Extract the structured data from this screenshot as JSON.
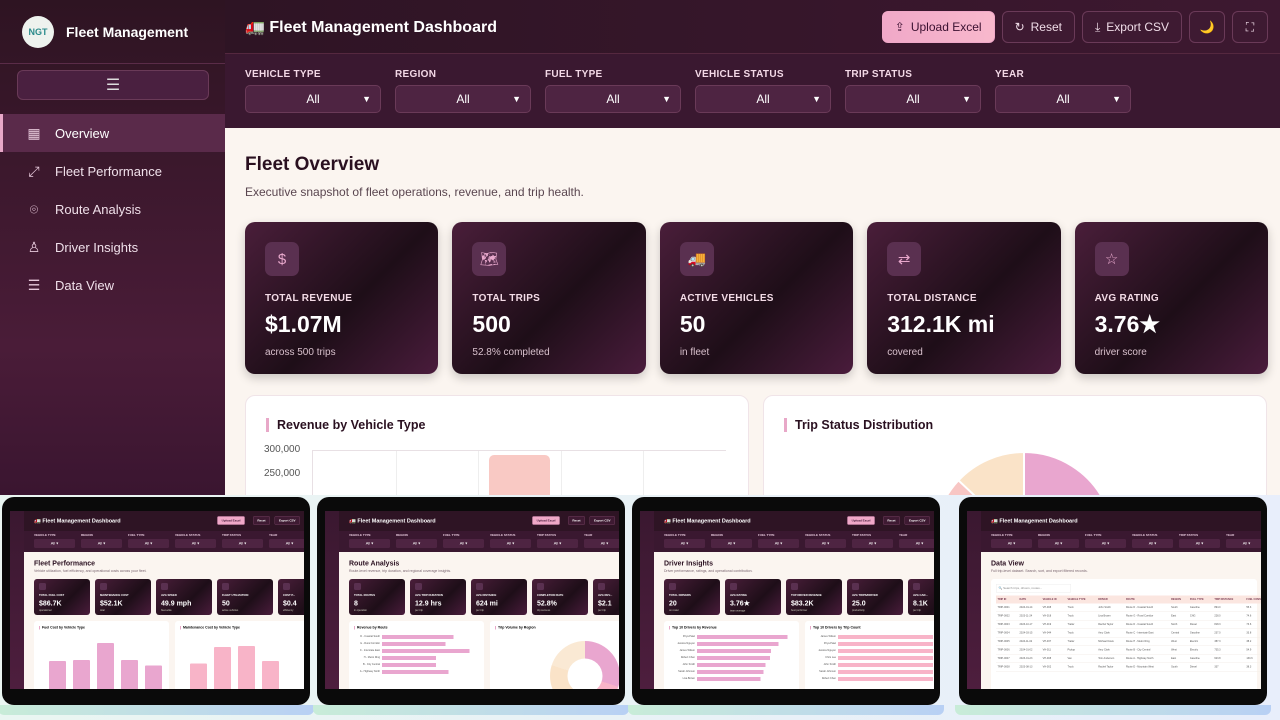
{
  "sidebar": {
    "logo_text": "NGT",
    "brand": "Fleet Management",
    "menu_icon": "☰",
    "items": [
      {
        "label": "Overview",
        "icon": "grid-icon",
        "active": true
      },
      {
        "label": "Fleet Performance",
        "icon": "expand-icon"
      },
      {
        "label": "Route Analysis",
        "icon": "map-pin-icon"
      },
      {
        "label": "Driver Insights",
        "icon": "user-icon"
      },
      {
        "label": "Data View",
        "icon": "list-icon"
      }
    ]
  },
  "header": {
    "title": "🚛 Fleet Management Dashboard",
    "upload": "Upload Excel",
    "reset": "Reset",
    "export": "Export CSV",
    "theme_icon": "🌙",
    "fullscreen_icon": "⛶"
  },
  "filters": [
    {
      "label": "VEHICLE TYPE",
      "value": "All"
    },
    {
      "label": "REGION",
      "value": "All"
    },
    {
      "label": "FUEL TYPE",
      "value": "All"
    },
    {
      "label": "VEHICLE STATUS",
      "value": "All"
    },
    {
      "label": "TRIP STATUS",
      "value": "All"
    },
    {
      "label": "YEAR",
      "value": "All"
    }
  ],
  "overview": {
    "title": "Fleet Overview",
    "subtitle": "Executive snapshot of fleet operations, revenue, and trip health.",
    "kpis": [
      {
        "icon": "$",
        "label": "TOTAL REVENUE",
        "value": "$1.07M",
        "sub": "across 500 trips"
      },
      {
        "icon": "🗺",
        "label": "TOTAL TRIPS",
        "value": "500",
        "sub": "52.8% completed"
      },
      {
        "icon": "🚚",
        "label": "ACTIVE VEHICLES",
        "value": "50",
        "sub": "in fleet"
      },
      {
        "icon": "⇄",
        "label": "TOTAL DISTANCE",
        "value": "312.1K mi",
        "sub": "covered"
      },
      {
        "icon": "☆",
        "label": "AVG RATING",
        "value": "3.76★",
        "sub": "driver score"
      }
    ],
    "revenue_chart": {
      "title": "Revenue by Vehicle Type",
      "y_ticks": [
        "300,000",
        "250,000"
      ],
      "bar_color": "#f9c9c4"
    },
    "status_chart": {
      "title": "Trip Status Distribution",
      "colors": [
        "#e9a6cf",
        "#fae3c8",
        "#f8c6c4"
      ]
    }
  },
  "thumbnails": [
    {
      "title": "Fleet Performance",
      "subtitle": "Vehicle utilization, fuel efficiency, and operational costs across your fleet.",
      "kpis": [
        {
          "label": "TOTAL FUEL COST",
          "value": "$86.7K",
          "sub": "operational"
        },
        {
          "label": "MAINTENANCE COST",
          "value": "$52.1K",
          "sub": "total"
        },
        {
          "label": "AVG SPEED",
          "value": "49.9 mph",
          "sub": "fleet-wide"
        },
        {
          "label": "FLEET UTILIZATION",
          "value": "50",
          "sub": "active vehicles"
        },
        {
          "label": "COST P...",
          "value": "$0.4",
          "sub": "efficiency"
        }
      ],
      "charts": [
        {
          "title": "Fuel Cost by Vehicle Type",
          "kind": "vbar",
          "values": [
            0.55,
            0.56,
            0.87,
            0.56,
            0.46
          ],
          "color": "#e9a6cf"
        },
        {
          "title": "Maintenance Cost by Vehicle Type",
          "kind": "vbar",
          "values": [
            0.5,
            0.8,
            0.82,
            0.55
          ],
          "color": "#f8b4c8"
        }
      ]
    },
    {
      "title": "Route Analysis",
      "subtitle": "Route-level revenue, trip duration, and regional coverage insights.",
      "kpis": [
        {
          "label": "TOTAL ROUTES",
          "value": "8",
          "sub": "in operation"
        },
        {
          "label": "AVG TRIP DURATION",
          "value": "12.9 hrs",
          "sub": "per trip"
        },
        {
          "label": "AVG DISTANCE",
          "value": "624 mi",
          "sub": "per trip"
        },
        {
          "label": "COMPLETION RATE",
          "value": "52.8%",
          "sub": "trip success"
        },
        {
          "label": "AVG REV...",
          "value": "$2.1",
          "sub": "per trip"
        }
      ],
      "charts": [
        {
          "title": "Revenue by Route",
          "kind": "hbar",
          "labels": [
            "D - Coastal South",
            "G - Rural Corridor",
            "C - Interstate East",
            "H - Metro Ring",
            "B - City Central",
            "A - Highway North"
          ],
          "values": [
            0.75,
            0.67,
            0.92,
            0.57,
            0.57,
            0.7
          ],
          "color": "#e9a6cf"
        },
        {
          "title": "Trip Volume by Region",
          "kind": "donut",
          "color": "#e9a6cf"
        }
      ]
    },
    {
      "title": "Driver Insights",
      "subtitle": "Driver performance, ratings, and operational contribution.",
      "kpis": [
        {
          "label": "TOTAL DRIVERS",
          "value": "20",
          "sub": "on roster"
        },
        {
          "label": "AVG RATING",
          "value": "3.76★",
          "sub": "team average"
        },
        {
          "label": "TOP DRIVER REVENUE",
          "value": "$83.2K",
          "sub": "best performer"
        },
        {
          "label": "AVG TRIPS/DRIVER",
          "value": "25.0",
          "sub": "productivity"
        },
        {
          "label": "AVG CAR...",
          "value": "8.1K",
          "sub": "per trip"
        }
      ],
      "charts": [
        {
          "title": "Top 10 Drivers by Revenue",
          "kind": "hbar",
          "labels": [
            "Priya Patel",
            "Jessica Nguyen",
            "James Wilson",
            "Robert Chen",
            "John Smith",
            "Sarah Johnson",
            "Lisa Brown"
          ],
          "values": [
            0.95,
            0.86,
            0.78,
            0.77,
            0.72,
            0.7,
            0.67
          ],
          "color": "#e9a6cf"
        },
        {
          "title": "Top 10 Drivers by Trip Count",
          "kind": "hbar",
          "labels": [
            "James Wilson",
            "Priya Patel",
            "Jessica Nguyen",
            "Chris Lee",
            "John Smith",
            "Sarah Johnson",
            "Robert Chen"
          ],
          "values": [
            1,
            1,
            1,
            1,
            1,
            1,
            1
          ],
          "color": "#f8b4c8"
        }
      ]
    },
    {
      "title": "Data View",
      "subtitle": "Full trip-level dataset. Search, sort, and export filtered records.",
      "search_placeholder": "Search trips, drivers, routes...",
      "columns": [
        "TRIP ID",
        "DATE",
        "VEHICLE ID",
        "VEHICLE TYPE",
        "DRIVER",
        "ROUTE",
        "REGION",
        "FUEL TYPE",
        "TRIP DISTANCE",
        "FUEL CONSUM"
      ],
      "rows": [
        [
          "TRIP-0001",
          "2024-01-14",
          "VH-008",
          "Truck",
          "John Smith",
          "Route D - Coastal South",
          "South",
          "Gasoline",
          "894.0",
          "55.3"
        ],
        [
          "TRIP-0002",
          "2023-11-24",
          "VH-018",
          "Truck",
          "Lisa Brown",
          "Route G - Rural Corridor",
          "East",
          "CNG",
          "228.0",
          "74.6"
        ],
        [
          "TRIP-0003",
          "2023-10-17",
          "VH-019",
          "Trailer",
          "Rachel Taylor",
          "Route D - Coastal South",
          "North",
          "Diesel",
          "818.3",
          "73.6"
        ],
        [
          "TRIP-0004",
          "2024-03-15",
          "VH-044",
          "Truck",
          "Amy Clark",
          "Route C - Interstate East",
          "Central",
          "Gasoline",
          "237.0",
          "33.8"
        ],
        [
          "TRIP-0005",
          "2024-11-02",
          "VH-037",
          "Trailer",
          "Michael Davis",
          "Route H - Metro Ring",
          "West",
          "Electric",
          "387.3",
          "38.2"
        ],
        [
          "TRIP-0006",
          "2024-01-02",
          "VH-011",
          "Pickup",
          "Amy Clark",
          "Route B - City Central",
          "West",
          "Electric",
          "735.3",
          "54.9"
        ],
        [
          "TRIP-0007",
          "2023-01-23",
          "VH-008",
          "Van",
          "Tom Anderson",
          "Route A - Highway North",
          "East",
          "Gasoline",
          "623.8",
          "130.6"
        ],
        [
          "TRIP-0008",
          "2023-08-13",
          "VH-002",
          "Truck",
          "Rachel Taylor",
          "Route E - Mountain West",
          "South",
          "Diesel",
          "337",
          "38.3"
        ]
      ]
    }
  ]
}
